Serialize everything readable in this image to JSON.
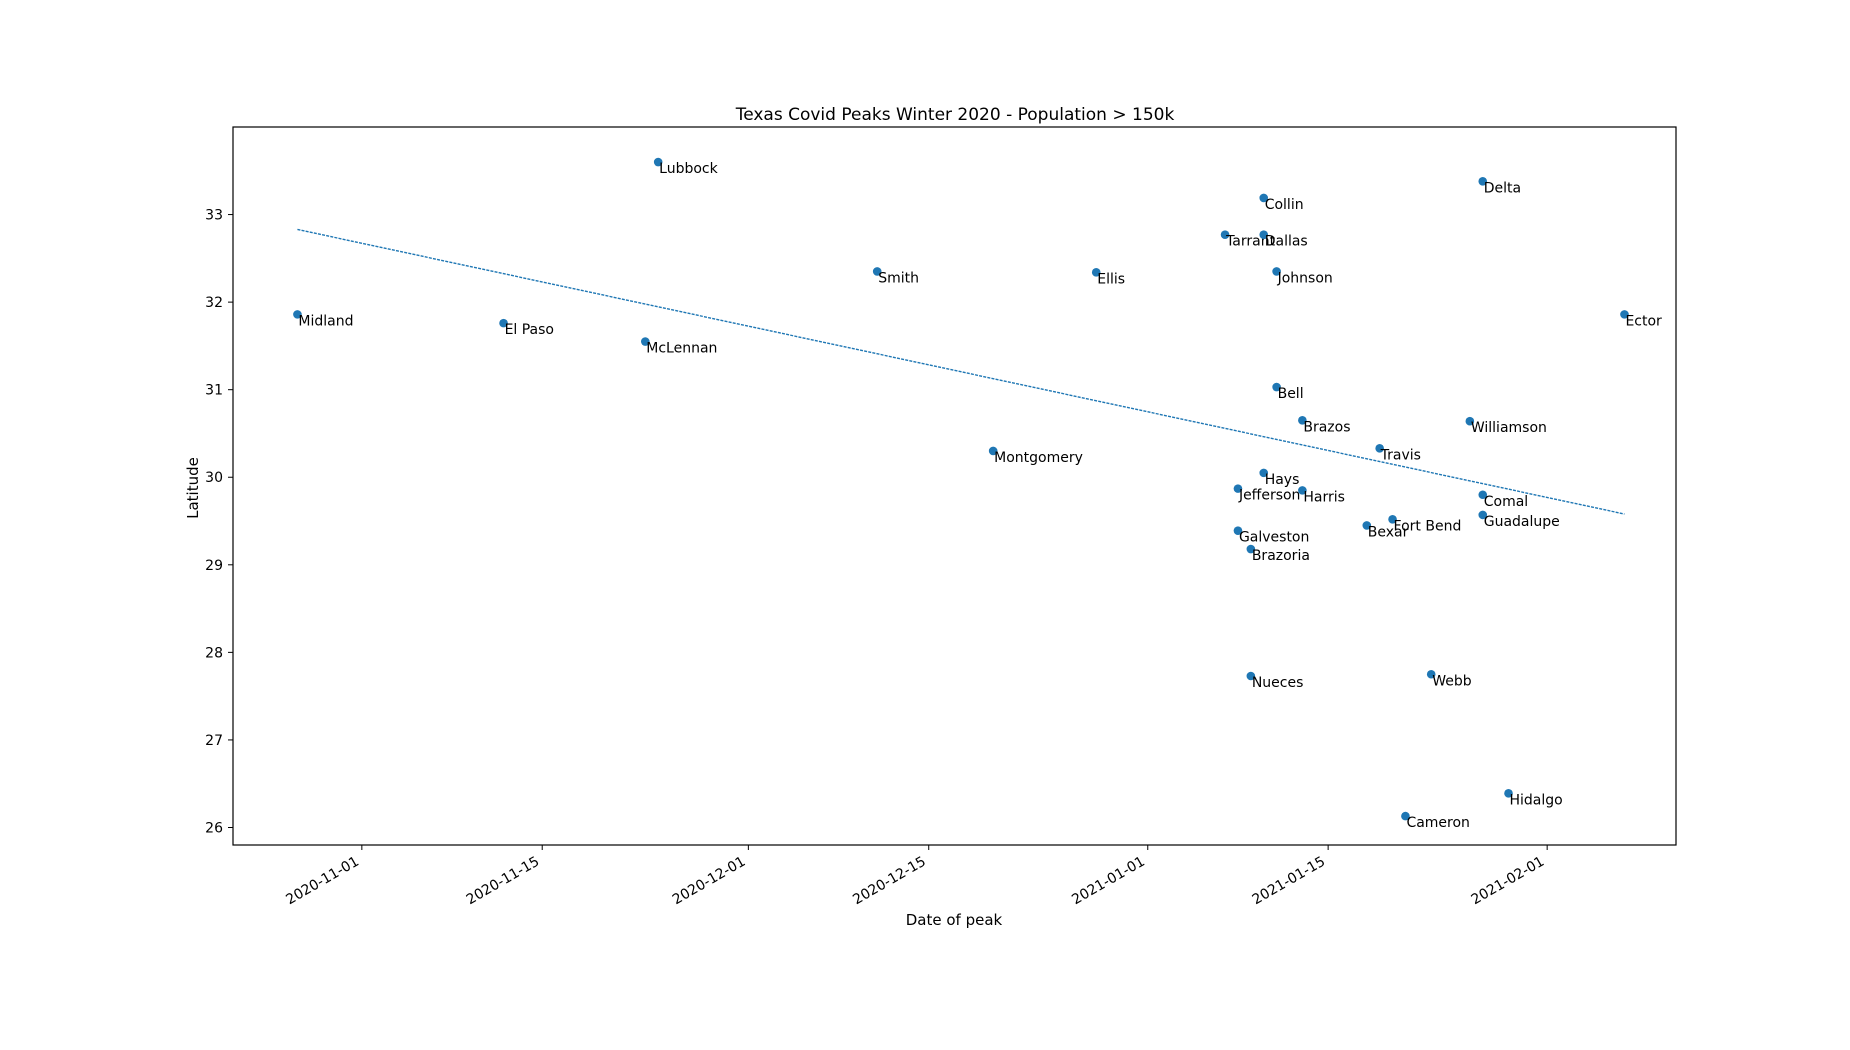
{
  "chart_data": {
    "type": "scatter",
    "title": "Texas Covid Peaks Winter 2020 - Population > 150k",
    "xlabel": "Date of peak",
    "ylabel": "Latitude",
    "x_scale": "date",
    "xlim": [
      "2020-10-22",
      "2021-02-11"
    ],
    "ylim": [
      25.8,
      34.0
    ],
    "x_ticks": [
      "2020-11-01",
      "2020-11-15",
      "2020-12-01",
      "2020-12-15",
      "2021-01-01",
      "2021-01-15",
      "2021-02-01"
    ],
    "y_ticks": [
      26,
      27,
      28,
      29,
      30,
      31,
      32,
      33
    ],
    "grid": false,
    "legend": "none",
    "colors": {
      "points": "#1f77b4",
      "trend": "#1f77b4"
    },
    "points": [
      {
        "label": "Midland",
        "x": "2020-10-27",
        "y": 31.86
      },
      {
        "label": "El Paso",
        "x": "2020-11-12",
        "y": 31.76
      },
      {
        "label": "McLennan",
        "x": "2020-11-23",
        "y": 31.55
      },
      {
        "label": "Lubbock",
        "x": "2020-11-24",
        "y": 33.6
      },
      {
        "label": "Smith",
        "x": "2020-12-11",
        "y": 32.35
      },
      {
        "label": "Montgomery",
        "x": "2020-12-20",
        "y": 30.3
      },
      {
        "label": "Ellis",
        "x": "2020-12-28",
        "y": 32.34
      },
      {
        "label": "Tarrant",
        "x": "2021-01-07",
        "y": 32.77
      },
      {
        "label": "Jefferson",
        "x": "2021-01-08",
        "y": 29.87
      },
      {
        "label": "Galveston",
        "x": "2021-01-08",
        "y": 29.39
      },
      {
        "label": "Nueces",
        "x": "2021-01-09",
        "y": 27.73
      },
      {
        "label": "Brazoria",
        "x": "2021-01-09",
        "y": 29.18
      },
      {
        "label": "Collin",
        "x": "2021-01-10",
        "y": 33.19
      },
      {
        "label": "Dallas",
        "x": "2021-01-10",
        "y": 32.77
      },
      {
        "label": "Hays",
        "x": "2021-01-10",
        "y": 30.05
      },
      {
        "label": "Johnson",
        "x": "2021-01-11",
        "y": 32.35
      },
      {
        "label": "Bell",
        "x": "2021-01-11",
        "y": 31.03
      },
      {
        "label": "Brazos",
        "x": "2021-01-13",
        "y": 30.65
      },
      {
        "label": "Harris",
        "x": "2021-01-13",
        "y": 29.85
      },
      {
        "label": "Bexar",
        "x": "2021-01-18",
        "y": 29.45
      },
      {
        "label": "Travis",
        "x": "2021-01-19",
        "y": 30.33
      },
      {
        "label": "Fort Bend",
        "x": "2021-01-20",
        "y": 29.52
      },
      {
        "label": "Cameron",
        "x": "2021-01-21",
        "y": 26.13
      },
      {
        "label": "Webb",
        "x": "2021-01-23",
        "y": 27.75
      },
      {
        "label": "Williamson",
        "x": "2021-01-26",
        "y": 30.64
      },
      {
        "label": "Delta",
        "x": "2021-01-27",
        "y": 33.38
      },
      {
        "label": "Comal",
        "x": "2021-01-27",
        "y": 29.8
      },
      {
        "label": "Guadalupe",
        "x": "2021-01-27",
        "y": 29.57
      },
      {
        "label": "Hidalgo",
        "x": "2021-01-29",
        "y": 26.39
      },
      {
        "label": "Ector",
        "x": "2021-02-07",
        "y": 31.86
      }
    ],
    "trend_line": [
      {
        "x": "2020-10-27",
        "y": 32.83
      },
      {
        "x": "2021-02-07",
        "y": 29.58
      }
    ]
  }
}
